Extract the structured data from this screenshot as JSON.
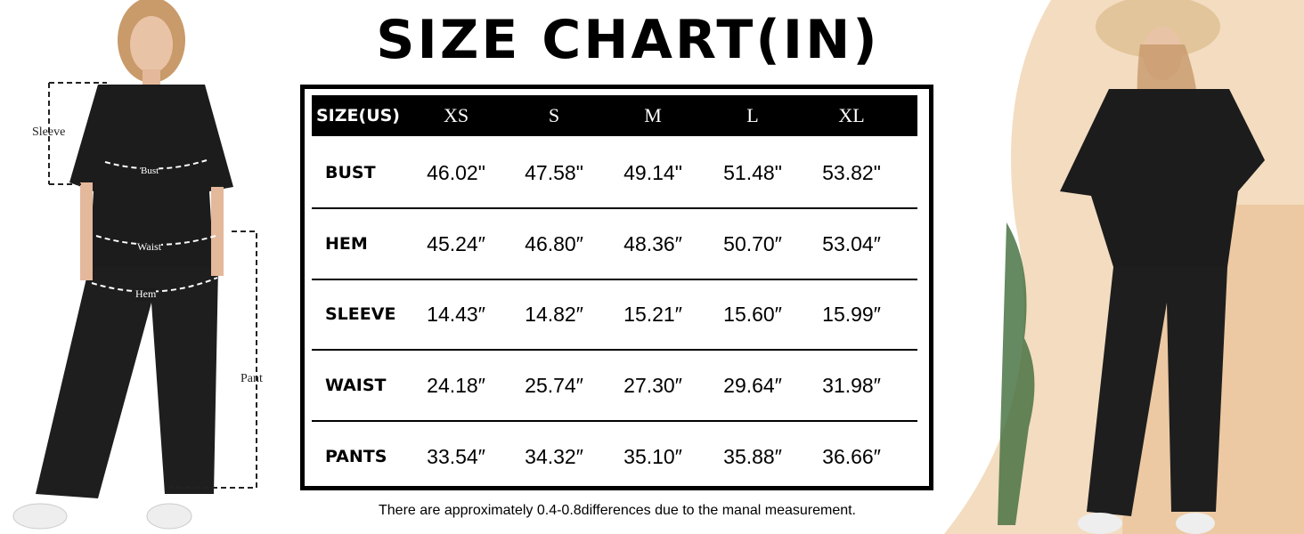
{
  "title": "SIZE CHART(IN)",
  "chart_data": {
    "type": "table",
    "title": "SIZE CHART(IN)",
    "header_label": "SIZE(US)",
    "columns": [
      "XS",
      "S",
      "M",
      "L",
      "XL"
    ],
    "rows": [
      {
        "label": "BUST",
        "values": [
          "46.02\"",
          "47.58\"",
          "49.14\"",
          "51.48\"",
          "53.82\""
        ]
      },
      {
        "label": "HEM",
        "values": [
          "45.24″",
          "46.80″",
          "48.36″",
          "50.70″",
          "53.04″"
        ]
      },
      {
        "label": "SLEEVE",
        "values": [
          "14.43″",
          "14.82″",
          "15.21″",
          "15.60″",
          "15.99″"
        ]
      },
      {
        "label": "WAIST",
        "values": [
          "24.18″",
          "25.74″",
          "27.30″",
          "29.64″",
          "31.98″"
        ]
      },
      {
        "label": "PANTS",
        "values": [
          "33.54″",
          "34.32″",
          "35.10″",
          "35.88″",
          "36.66″"
        ]
      }
    ]
  },
  "footnote": "There are approximately 0.4-0.8differences due to the manal  measurement.",
  "figure_labels": {
    "sleeve": "Sleeve",
    "bust": "Bust",
    "waist": "Waist",
    "hem": "Hem",
    "pant": "Pant"
  },
  "colors": {
    "outfit": "#1c1c1c",
    "background_right": "#f3dcc0",
    "table_header": "#000000"
  }
}
